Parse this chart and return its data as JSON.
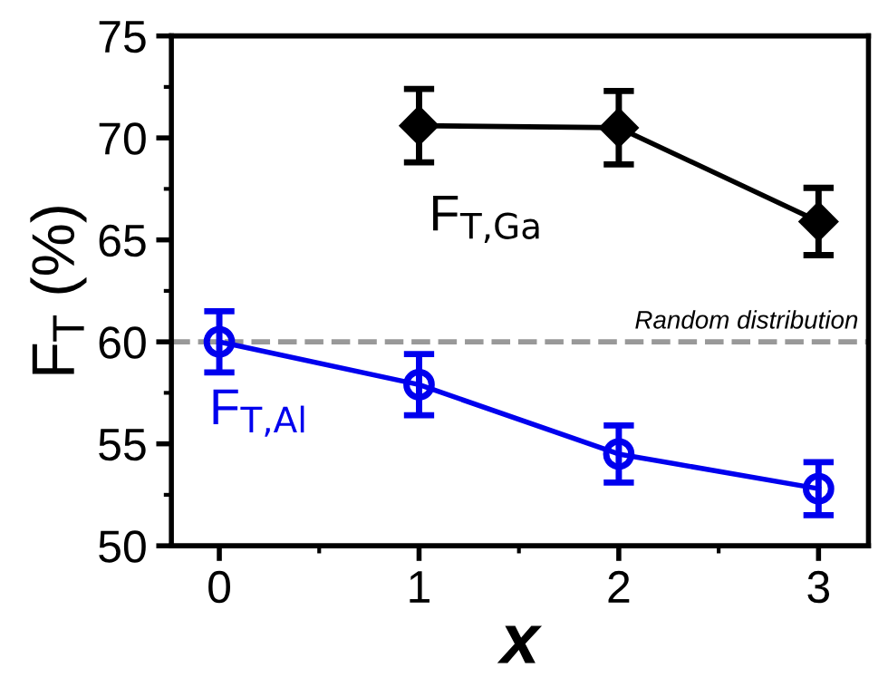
{
  "chart_data": {
    "type": "line",
    "xlabel": "x",
    "ylabel": "F$_{T}$ (%)",
    "series": [
      {
        "name": "F$_{T,Ga}$",
        "color": "#000000",
        "x": [
          1,
          2,
          3
        ],
        "values": [
          70.6,
          70.5,
          65.9
        ],
        "errors": [
          1.8,
          1.8,
          1.65
        ],
        "marker": "diamond"
      },
      {
        "name": "F$_{T,Al}$",
        "color": "#0000ee",
        "x": [
          0,
          1,
          2,
          3
        ],
        "values": [
          60.0,
          57.9,
          54.5,
          52.8
        ],
        "errors": [
          1.5,
          1.5,
          1.4,
          1.3
        ],
        "marker": "circle"
      }
    ],
    "ref_lines": [
      {
        "axis": "y",
        "value": 60,
        "label": "Random distribution",
        "color": "#999999",
        "line_style": "dashed"
      }
    ],
    "xlim": [
      -0.24,
      3.25
    ],
    "xticks": [
      0,
      1,
      2,
      3
    ],
    "ylim": [
      50,
      75
    ],
    "yticks": [
      50,
      55,
      60,
      65,
      70,
      75
    ],
    "grid": false,
    "legend": false,
    "line_style": "solid"
  }
}
